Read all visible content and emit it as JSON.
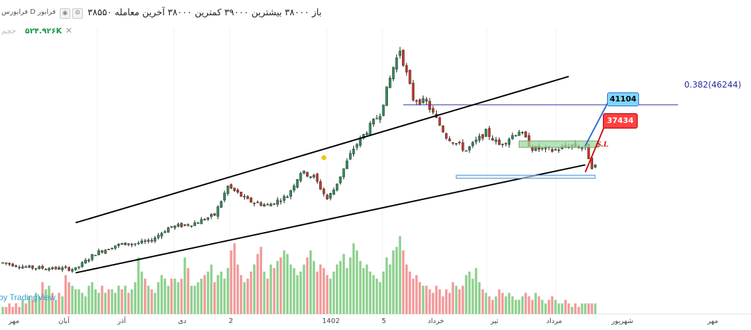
{
  "header": {
    "symbol_label": "فرابورس D فرابور",
    "ohlc_text": "باز ۳۸۰۰۰ بیشترین ۳۹۰۰۰ کمترین ۳۸۰۰۰ آخرین معامله ۳۸۵۵۰",
    "eye_icon": "eye-icon",
    "settings_icon": "gear-icon"
  },
  "volume": {
    "label": "حجم",
    "value": "۵۲۴.۹۲۶K",
    "close_icon": "close-icon"
  },
  "watermark": "by TradingView",
  "x_axis": {
    "labels": [
      "مهر",
      "آبان",
      "آذر",
      "دی",
      "2",
      "1402",
      "5",
      "خرداد",
      "تیر",
      "مرداد",
      "شهریور",
      "مهر"
    ]
  },
  "annotations": {
    "fib_label": "0.382(46244)",
    "target_label": "41104",
    "stop_label": "37434",
    "stop_text": "S.L"
  },
  "colors": {
    "up": "#2e8b57",
    "down": "#c0392b",
    "volume_up": "#8fd18f",
    "volume_down": "#f39a9a",
    "channel": "#000000",
    "fib": "#2b2ba0",
    "target_box": "#9fd89f",
    "support_box": "#4a90d9",
    "signal_dot": "#f1c40f"
  },
  "chart_data": {
    "type": "candlestick",
    "title": "",
    "price_anchors": [
      {
        "i": 0,
        "p": 26400
      },
      {
        "i": 8,
        "p": 25800
      },
      {
        "i": 16,
        "p": 25700
      },
      {
        "i": 22,
        "p": 25600
      },
      {
        "i": 28,
        "p": 27600
      },
      {
        "i": 34,
        "p": 28600
      },
      {
        "i": 44,
        "p": 29000
      },
      {
        "i": 50,
        "p": 30800
      },
      {
        "i": 58,
        "p": 31400
      },
      {
        "i": 64,
        "p": 32400
      },
      {
        "i": 68,
        "p": 36000
      },
      {
        "i": 74,
        "p": 34200
      },
      {
        "i": 80,
        "p": 33600
      },
      {
        "i": 86,
        "p": 34800
      },
      {
        "i": 90,
        "p": 37800
      },
      {
        "i": 94,
        "p": 37200
      },
      {
        "i": 98,
        "p": 34400
      },
      {
        "i": 100,
        "p": 35600
      },
      {
        "i": 106,
        "p": 40800
      },
      {
        "i": 114,
        "p": 45200
      },
      {
        "i": 118,
        "p": 51000
      },
      {
        "i": 120,
        "p": 53200
      },
      {
        "i": 124,
        "p": 47000
      },
      {
        "i": 128,
        "p": 46500
      },
      {
        "i": 134,
        "p": 42300
      },
      {
        "i": 140,
        "p": 40500
      },
      {
        "i": 146,
        "p": 42800
      },
      {
        "i": 150,
        "p": 41200
      },
      {
        "i": 156,
        "p": 43000
      },
      {
        "i": 160,
        "p": 40800
      },
      {
        "i": 166,
        "p": 40500
      },
      {
        "i": 172,
        "p": 41200
      },
      {
        "i": 176,
        "p": 40800
      },
      {
        "i": 178,
        "p": 38550
      }
    ],
    "volume_profile": [
      2,
      2,
      3,
      2,
      3,
      2,
      4,
      3,
      5,
      4,
      6,
      5,
      9,
      7,
      8,
      6,
      4,
      6,
      5,
      11,
      9,
      8,
      7,
      7,
      6,
      5,
      8,
      9,
      7,
      6,
      8,
      6,
      7,
      7,
      6,
      8,
      7,
      8,
      6,
      7,
      9,
      16,
      12,
      10,
      8,
      7,
      6,
      9,
      11,
      10,
      8,
      10,
      10,
      9,
      10,
      16,
      13,
      8,
      8,
      9,
      10,
      11,
      12,
      14,
      9,
      11,
      12,
      10,
      13,
      18,
      20,
      14,
      11,
      9,
      10,
      12,
      14,
      17,
      19,
      12,
      10,
      14,
      13,
      15,
      16,
      18,
      17,
      14,
      13,
      11,
      12,
      14,
      16,
      18,
      15,
      12,
      14,
      13,
      11,
      10,
      12,
      14,
      15,
      17,
      13,
      16,
      20,
      18,
      15,
      13,
      14,
      12,
      11,
      10,
      9,
      12,
      16,
      14,
      18,
      19,
      22,
      18,
      14,
      12,
      10,
      11,
      9,
      8,
      8,
      7,
      6,
      8,
      7,
      5,
      7,
      6,
      9,
      8,
      7,
      8,
      11,
      12,
      10,
      13,
      9,
      7,
      6,
      5,
      4,
      5,
      7,
      6,
      5,
      6,
      5,
      4,
      4,
      5,
      6,
      5,
      4,
      6,
      5,
      4,
      3,
      4,
      5,
      4,
      3,
      3,
      4,
      3,
      2,
      3,
      2,
      3
    ],
    "x": {
      "labels": [
        "مهر",
        "آبان",
        "آذر",
        "دی",
        "2",
        "1402",
        "5",
        "خرداد",
        "تیر",
        "مرداد",
        "شهریور",
        "مهر"
      ]
    },
    "levels": {
      "fib_0382": 46244,
      "target": 41104,
      "stop": 37434,
      "support_zone": [
        37000,
        37400
      ],
      "target_zone": [
        40900,
        41700
      ]
    },
    "channel": {
      "upper": [
        {
          "i": 25,
          "p": 31800
        },
        {
          "i": 171,
          "p": 49800
        }
      ],
      "lower": [
        {
          "i": 25,
          "p": 25400
        },
        {
          "i": 176,
          "p": 38700
        }
      ]
    },
    "series": [
      {
        "name": "حجم",
        "kind": "volume"
      }
    ]
  }
}
